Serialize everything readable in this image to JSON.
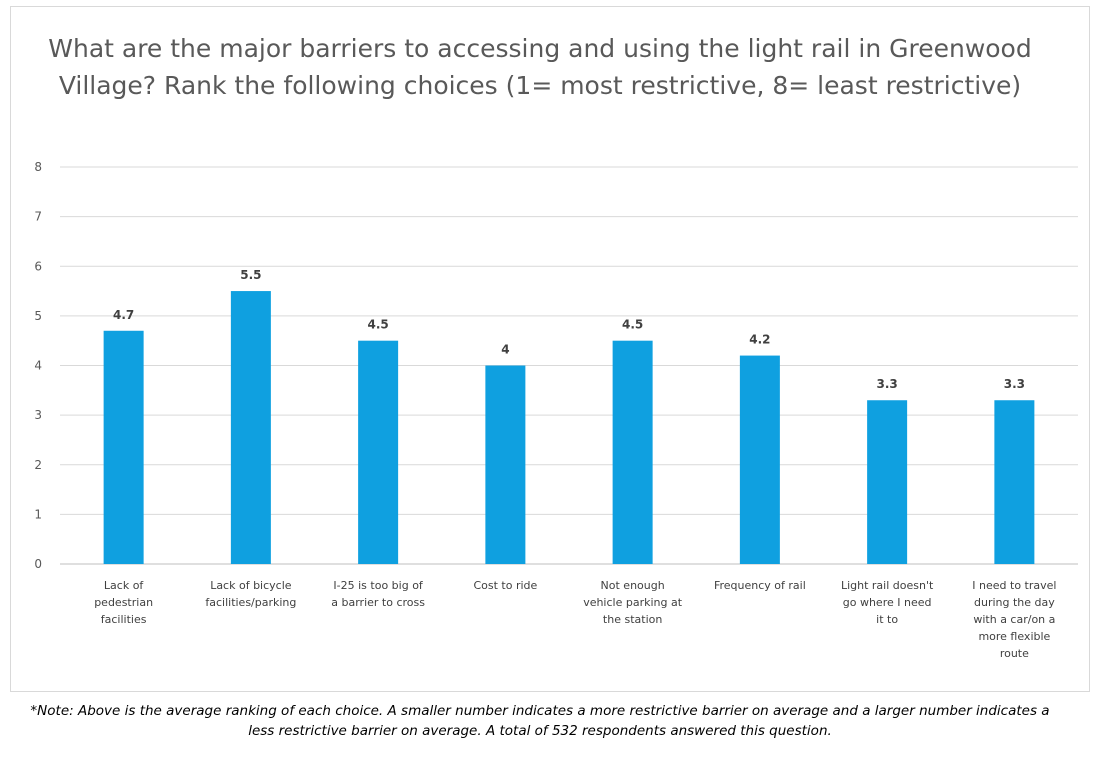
{
  "chart_data": {
    "type": "bar",
    "title": "What are the major barriers to accessing and using the light rail in Greenwood Village? Rank the following choices (1= most restrictive, 8= least restrictive)",
    "categories": [
      "Lack of pedestrian facilities",
      "Lack of bicycle facilities/parking",
      "I-25 is too big of a barrier to cross",
      "Cost to ride",
      "Not enough vehicle parking at the station",
      "Frequency of rail",
      "Light rail doesn't go where I need it to",
      "I need to travel during the day with a car/on a more flexible route"
    ],
    "category_lines": [
      [
        "Lack of",
        "pedestrian",
        "facilities"
      ],
      [
        "Lack of bicycle",
        "facilities/parking"
      ],
      [
        "I-25 is too big of",
        "a barrier to cross"
      ],
      [
        "Cost to ride"
      ],
      [
        "Not enough",
        "vehicle parking at",
        "the station"
      ],
      [
        "Frequency of rail"
      ],
      [
        "Light rail doesn't",
        "go where I need",
        "it to"
      ],
      [
        "I need to travel",
        "during the day",
        "with a car/on a",
        "more flexible",
        "route"
      ]
    ],
    "values": [
      4.7,
      5.5,
      4.5,
      4,
      4.5,
      4.2,
      3.3,
      3.3
    ],
    "data_labels": [
      "4.7",
      "5.5",
      "4.5",
      "4",
      "4.5",
      "4.2",
      "3.3",
      "3.3"
    ],
    "ylim": [
      0,
      8
    ],
    "yticks": [
      "0",
      "1",
      "2",
      "3",
      "4",
      "5",
      "6",
      "7",
      "8"
    ],
    "grid": true,
    "bar_color": "#0fa0e0",
    "xlabel": "",
    "ylabel": ""
  },
  "note": "*Note: Above is the average ranking of each choice. A smaller number indicates a more restrictive barrier on average and a larger number indicates a less restrictive barrier on average. A total of 532 respondents answered this question."
}
